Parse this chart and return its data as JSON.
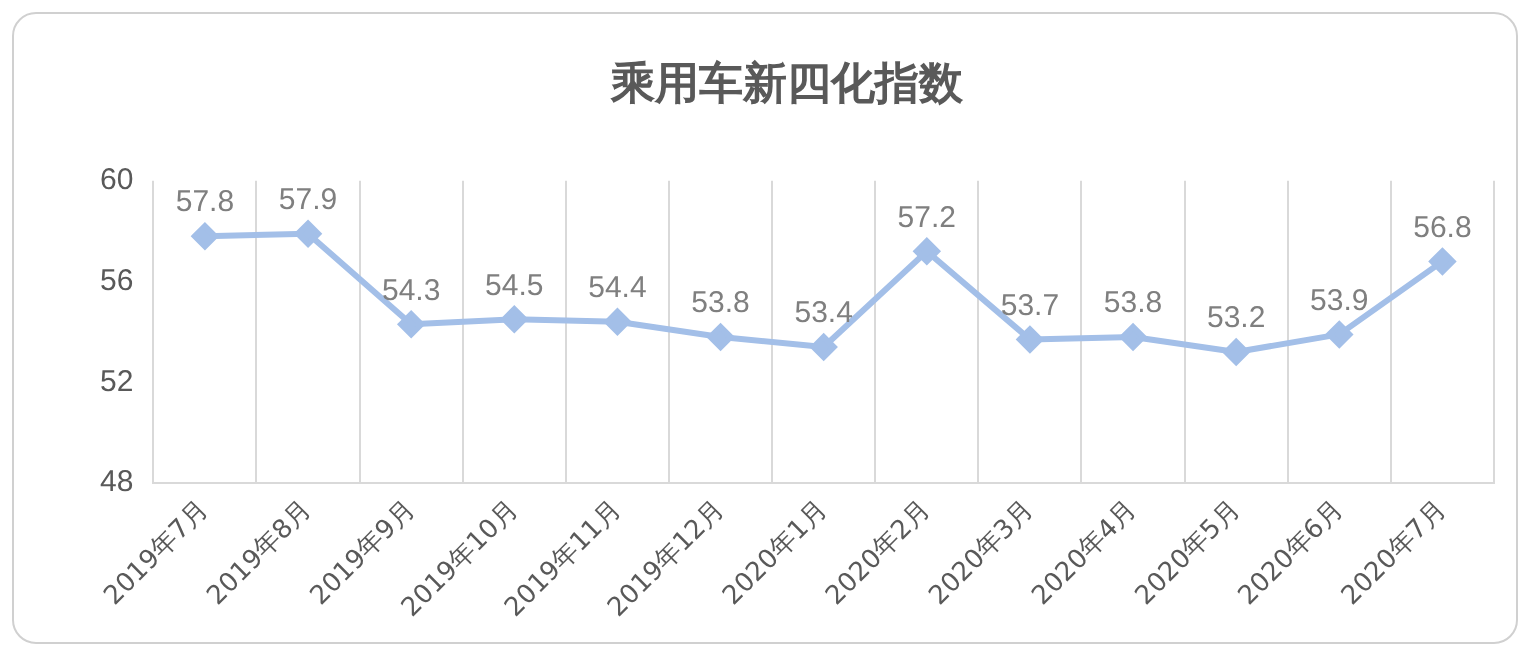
{
  "chart_data": {
    "type": "line",
    "title": "乘用车新四化指数",
    "categories": [
      "2019年7月",
      "2019年8月",
      "2019年9月",
      "2019年10月",
      "2019年11月",
      "2019年12月",
      "2020年1月",
      "2020年2月",
      "2020年3月",
      "2020年4月",
      "2020年5月",
      "2020年6月",
      "2020年7月"
    ],
    "values": [
      57.8,
      57.9,
      54.3,
      54.5,
      54.4,
      53.8,
      53.4,
      57.2,
      53.7,
      53.8,
      53.2,
      53.9,
      56.8
    ],
    "color": "#a3bfe8",
    "ylim": [
      48,
      60
    ],
    "yticks": [
      48,
      52,
      56,
      60
    ],
    "grid": "x",
    "marker": "diamond",
    "line_style": "solid",
    "data_labels": true,
    "legend": false
  }
}
